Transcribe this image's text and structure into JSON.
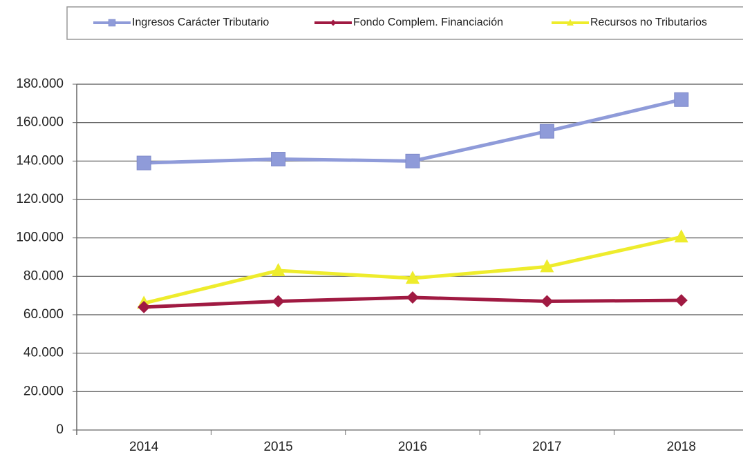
{
  "chart_data": {
    "type": "line",
    "categories": [
      "2014",
      "2015",
      "2016",
      "2017",
      "2018"
    ],
    "series": [
      {
        "name": "Ingresos Carácter Tributario",
        "color": "#8f9bd9",
        "marker": "square",
        "values": [
          139000,
          141000,
          140000,
          155500,
          172000
        ]
      },
      {
        "name": "Fondo Complem. Financiación",
        "color": "#a01a42",
        "marker": "diamond",
        "values": [
          64000,
          67000,
          69000,
          67000,
          67500
        ]
      },
      {
        "name": "Recursos no Tributarios",
        "color": "#eeec2c",
        "marker": "triangle",
        "values": [
          66000,
          83000,
          79000,
          85000,
          100500
        ]
      }
    ],
    "ylim": [
      0,
      180000
    ],
    "yticks": [
      0,
      {
        "value": 20000,
        "label": "20.000"
      },
      {
        "value": 40000,
        "label": "40.000"
      },
      {
        "value": 60000,
        "label": "60.000"
      },
      {
        "value": 80000,
        "label": "80.000"
      },
      {
        "value": 100000,
        "label": "100.000"
      },
      {
        "value": 120000,
        "label": "120.000"
      },
      {
        "value": 140000,
        "label": "140.000"
      },
      {
        "value": 160000,
        "label": "160.000"
      },
      {
        "value": 180000,
        "label": "180.000"
      }
    ],
    "grid": true,
    "legend": "top"
  }
}
